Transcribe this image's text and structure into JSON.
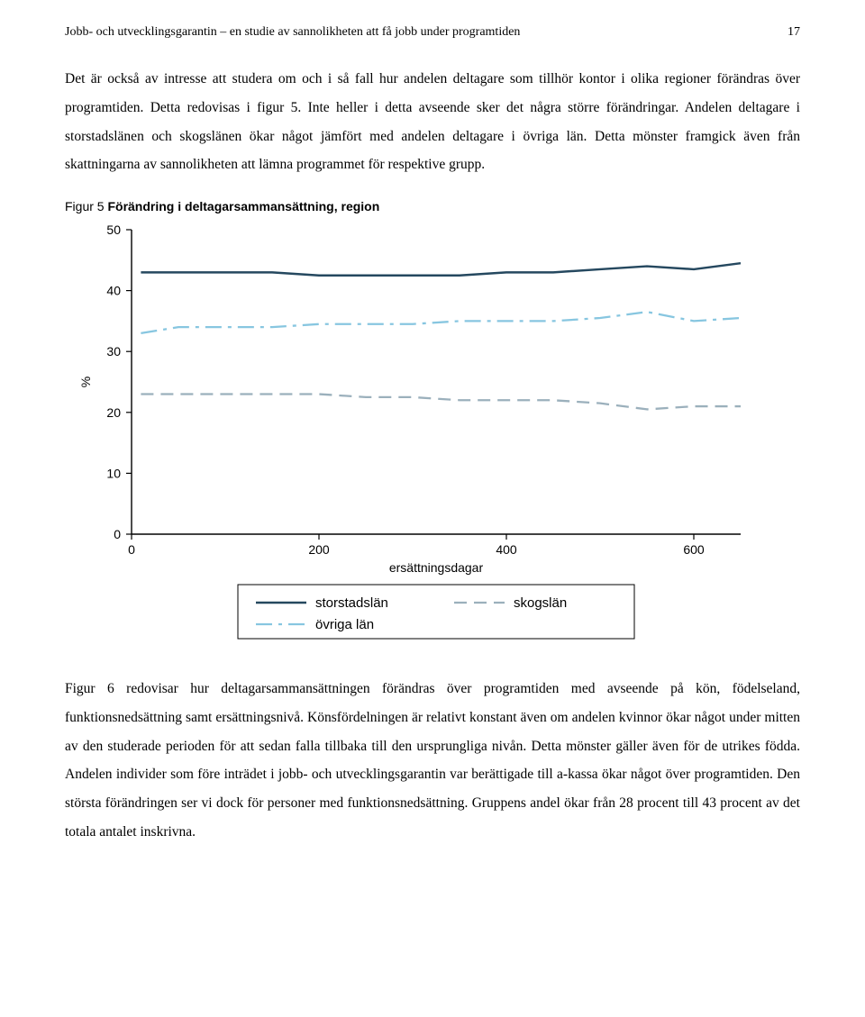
{
  "header": {
    "running_title": "Jobb- och utvecklingsgarantin – en studie av sannolikheten att få jobb under programtiden",
    "page_number": "17"
  },
  "paragraph1": "Det är också av intresse att studera om och i så fall hur andelen deltagare som tillhör kontor i olika regioner förändras över programtiden. Detta redovisas i figur 5.  Inte heller i detta avseende sker det några större förändringar. Andelen deltagare i storstadslänen och skogslänen ökar något jämfört med andelen deltagare i övriga län. Detta mönster framgick även från skattningarna av sannolikheten att lämna programmet för respektive grupp.",
  "figure5": {
    "caption_prefix": "Figur 5 ",
    "caption_bold": "Förändring i deltagarsammansättning, region",
    "type": "line",
    "xlabel": "ersättningsdagar",
    "ylabel": "%",
    "x_ticks": [
      0,
      200,
      400,
      600
    ],
    "y_ticks": [
      0,
      10,
      20,
      30,
      40,
      50
    ],
    "xlim": [
      0,
      650
    ],
    "ylim": [
      0,
      50
    ],
    "background_color": "#ffffff",
    "axis_color": "#000000",
    "label_fontsize": 14,
    "tick_fontsize": 14,
    "series": [
      {
        "name": "storstadslän",
        "color": "#25485f",
        "dash": "solid",
        "width": 2.5,
        "x": [
          10,
          50,
          100,
          150,
          200,
          250,
          300,
          350,
          400,
          450,
          500,
          550,
          600,
          650
        ],
        "y": [
          43,
          43,
          43,
          43,
          42.5,
          42.5,
          42.5,
          42.5,
          43,
          43,
          43.5,
          44,
          43.5,
          44.5
        ]
      },
      {
        "name": "skogslän",
        "color": "#9bb0bc",
        "dash": "dash",
        "width": 2.3,
        "x": [
          10,
          50,
          100,
          150,
          200,
          250,
          300,
          350,
          400,
          450,
          500,
          550,
          600,
          650
        ],
        "y": [
          23,
          23,
          23,
          23,
          23,
          22.5,
          22.5,
          22,
          22,
          22,
          21.5,
          20.5,
          21,
          21
        ]
      },
      {
        "name": "övriga län",
        "color": "#87c6e0",
        "dash": "dashdot",
        "width": 2.3,
        "x": [
          10,
          50,
          100,
          150,
          200,
          250,
          300,
          350,
          400,
          450,
          500,
          550,
          600,
          650
        ],
        "y": [
          33,
          34,
          34,
          34,
          34.5,
          34.5,
          34.5,
          35,
          35,
          35,
          35.5,
          36.5,
          35,
          35.5
        ]
      }
    ],
    "legend": {
      "items": [
        "storstadslän",
        "skogslän",
        "övriga län"
      ]
    }
  },
  "paragraph2": "Figur 6 redovisar hur deltagarsammansättningen förändras över programtiden med avseende på kön, födelseland, funktionsnedsättning samt ersättningsnivå. Könsfördelningen är relativt konstant även om andelen kvinnor ökar något under mitten av den studerade perioden för att sedan falla tillbaka till den ursprungliga nivån. Detta mönster gäller även för de utrikes födda. Andelen individer som före inträdet i jobb- och utvecklingsgarantin var berättigade till a-kassa ökar något över programtiden. Den största förändringen ser vi dock för personer med funktionsnedsättning. Gruppens andel ökar från 28 procent till 43 procent av det totala antalet inskrivna."
}
